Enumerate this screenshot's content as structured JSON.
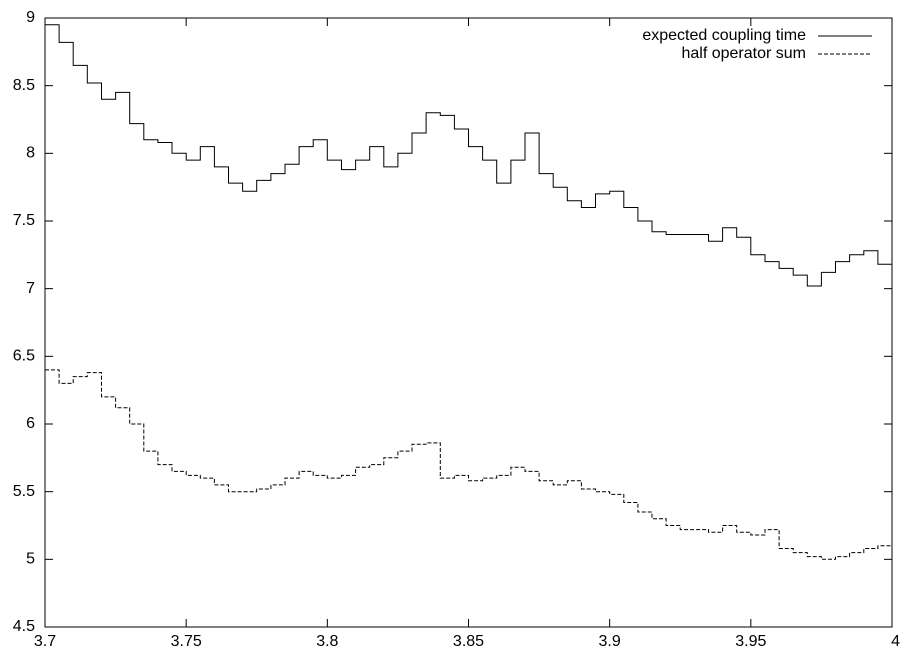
{
  "chart_data": {
    "type": "line",
    "title": "",
    "xlabel": "",
    "ylabel": "",
    "xlim": [
      3.7,
      4.0
    ],
    "ylim": [
      4.5,
      9.0
    ],
    "xticks": [
      "3.7",
      "3.75",
      "3.8",
      "3.85",
      "3.9",
      "3.95",
      "4"
    ],
    "yticks": [
      "4.5",
      "5",
      "5.5",
      "6",
      "6.5",
      "7",
      "7.5",
      "8",
      "8.5",
      "9"
    ],
    "grid": false,
    "legend_position": "top-right",
    "series": [
      {
        "name": "expected coupling time",
        "style": "solid",
        "color": "#000000",
        "x": [
          3.7,
          3.705,
          3.71,
          3.715,
          3.72,
          3.725,
          3.73,
          3.735,
          3.74,
          3.745,
          3.75,
          3.755,
          3.76,
          3.765,
          3.77,
          3.775,
          3.78,
          3.785,
          3.79,
          3.795,
          3.8,
          3.805,
          3.81,
          3.815,
          3.82,
          3.825,
          3.83,
          3.835,
          3.84,
          3.845,
          3.85,
          3.855,
          3.86,
          3.865,
          3.87,
          3.875,
          3.88,
          3.885,
          3.89,
          3.895,
          3.9,
          3.905,
          3.91,
          3.915,
          3.92,
          3.925,
          3.93,
          3.935,
          3.94,
          3.945,
          3.95,
          3.955,
          3.96,
          3.965,
          3.97,
          3.975,
          3.98,
          3.985,
          3.99,
          3.995,
          4.0
        ],
        "y": [
          8.95,
          8.82,
          8.65,
          8.52,
          8.4,
          8.45,
          8.22,
          8.1,
          8.08,
          8.0,
          7.95,
          8.05,
          7.9,
          7.78,
          7.72,
          7.8,
          7.85,
          7.92,
          8.05,
          8.1,
          7.95,
          7.88,
          7.95,
          8.05,
          7.9,
          8.0,
          8.15,
          8.3,
          8.28,
          8.18,
          8.05,
          7.95,
          7.78,
          7.95,
          8.15,
          7.85,
          7.75,
          7.65,
          7.6,
          7.7,
          7.72,
          7.6,
          7.5,
          7.42,
          7.4,
          7.4,
          7.4,
          7.35,
          7.45,
          7.38,
          7.25,
          7.2,
          7.15,
          7.1,
          7.02,
          7.12,
          7.2,
          7.25,
          7.28,
          7.18,
          7.1
        ]
      },
      {
        "name": "half operator sum",
        "style": "dashed",
        "color": "#000000",
        "x": [
          3.7,
          3.705,
          3.71,
          3.715,
          3.72,
          3.725,
          3.73,
          3.735,
          3.74,
          3.745,
          3.75,
          3.755,
          3.76,
          3.765,
          3.77,
          3.775,
          3.78,
          3.785,
          3.79,
          3.795,
          3.8,
          3.805,
          3.81,
          3.815,
          3.82,
          3.825,
          3.83,
          3.835,
          3.84,
          3.845,
          3.85,
          3.855,
          3.86,
          3.865,
          3.87,
          3.875,
          3.88,
          3.885,
          3.89,
          3.895,
          3.9,
          3.905,
          3.91,
          3.915,
          3.92,
          3.925,
          3.93,
          3.935,
          3.94,
          3.945,
          3.95,
          3.955,
          3.96,
          3.965,
          3.97,
          3.975,
          3.98,
          3.985,
          3.99,
          3.995,
          4.0
        ],
        "y": [
          6.4,
          6.3,
          6.35,
          6.38,
          6.2,
          6.12,
          6.0,
          5.8,
          5.7,
          5.65,
          5.62,
          5.6,
          5.55,
          5.5,
          5.5,
          5.52,
          5.55,
          5.6,
          5.65,
          5.62,
          5.6,
          5.62,
          5.68,
          5.7,
          5.75,
          5.8,
          5.85,
          5.86,
          5.6,
          5.62,
          5.58,
          5.6,
          5.62,
          5.68,
          5.65,
          5.58,
          5.55,
          5.58,
          5.52,
          5.5,
          5.48,
          5.42,
          5.35,
          5.3,
          5.25,
          5.22,
          5.22,
          5.2,
          5.25,
          5.2,
          5.18,
          5.22,
          5.08,
          5.05,
          5.02,
          5.0,
          5.02,
          5.05,
          5.08,
          5.1,
          5.1
        ]
      }
    ]
  }
}
